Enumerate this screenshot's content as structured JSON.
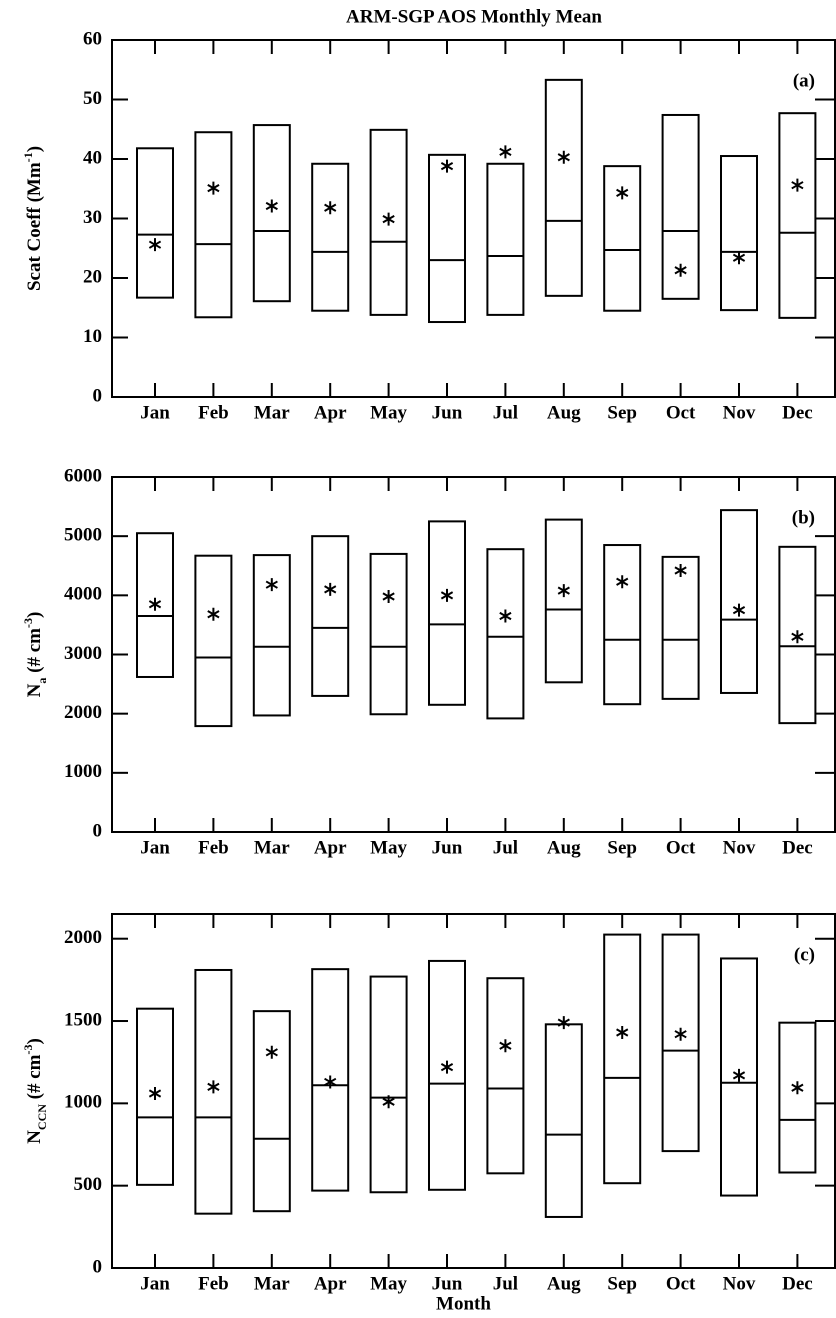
{
  "chart_data": [
    {
      "type": "range-box",
      "title": "ARM-SGP AOS Monthly Mean",
      "annotation": "(a)",
      "ylabel": [
        {
          "text": "Scat Coeff (Mm"
        },
        {
          "text": "-1",
          "shift": "super"
        },
        {
          "text": ")"
        }
      ],
      "categories": [
        "Jan",
        "Feb",
        "Mar",
        "Apr",
        "May",
        "Jun",
        "Jul",
        "Aug",
        "Sep",
        "Oct",
        "Nov",
        "Dec"
      ],
      "high": [
        41.8,
        44.5,
        45.7,
        39.2,
        44.9,
        40.7,
        39.2,
        53.3,
        38.8,
        47.4,
        40.5,
        47.7
      ],
      "median": [
        27.3,
        25.7,
        27.9,
        24.4,
        26.1,
        23.0,
        23.7,
        29.6,
        24.7,
        27.9,
        24.4,
        27.6
      ],
      "low": [
        16.7,
        13.4,
        16.1,
        14.5,
        13.8,
        12.6,
        13.8,
        17.0,
        14.5,
        16.5,
        14.6,
        13.3
      ],
      "mean": [
        25.6,
        35.1,
        32.1,
        31.8,
        29.9,
        38.8,
        41.2,
        40.3,
        34.3,
        21.3,
        23.4,
        35.6
      ],
      "color": "#000000",
      "ylim": [
        0,
        60
      ],
      "yticks": [
        0,
        10,
        20,
        30,
        40,
        50,
        60
      ]
    },
    {
      "type": "range-box",
      "annotation": "(b)",
      "ylabel": [
        {
          "text": "N"
        },
        {
          "text": "a",
          "shift": "sub"
        },
        {
          "text": " (# cm"
        },
        {
          "text": "-3",
          "shift": "super"
        },
        {
          "text": ")"
        }
      ],
      "categories": [
        "Jan",
        "Feb",
        "Mar",
        "Apr",
        "May",
        "Jun",
        "Jul",
        "Aug",
        "Sep",
        "Oct",
        "Nov",
        "Dec"
      ],
      "high": [
        5050,
        4670,
        4680,
        5000,
        4700,
        5250,
        4780,
        5280,
        4850,
        4650,
        5440,
        4820
      ],
      "median": [
        3650,
        2950,
        3130,
        3450,
        3130,
        3510,
        3300,
        3760,
        3250,
        3250,
        3590,
        3140
      ],
      "low": [
        2620,
        1790,
        1970,
        2300,
        1990,
        2150,
        1920,
        2530,
        2160,
        2250,
        2350,
        1840
      ],
      "mean": [
        3850,
        3680,
        4180,
        4100,
        3980,
        4000,
        3650,
        4080,
        4230,
        4420,
        3750,
        3300
      ],
      "color": "#000000",
      "ylim": [
        0,
        6000
      ],
      "yticks": [
        0,
        1000,
        2000,
        3000,
        4000,
        5000,
        6000
      ]
    },
    {
      "type": "range-box",
      "annotation": "(c)",
      "xlabel": "Month",
      "ylabel": [
        {
          "text": "N"
        },
        {
          "text": "CCN",
          "shift": "sub"
        },
        {
          "text": " (# cm"
        },
        {
          "text": "-3",
          "shift": "super"
        },
        {
          "text": ")"
        }
      ],
      "categories": [
        "Jan",
        "Feb",
        "Mar",
        "Apr",
        "May",
        "Jun",
        "Jul",
        "Aug",
        "Sep",
        "Oct",
        "Nov",
        "Dec"
      ],
      "high": [
        1575,
        1810,
        1560,
        1815,
        1770,
        1865,
        1760,
        1480,
        2025,
        2025,
        1880,
        1490
      ],
      "median": [
        915,
        915,
        785,
        1110,
        1035,
        1120,
        1090,
        810,
        1155,
        1320,
        1125,
        900
      ],
      "low": [
        505,
        330,
        345,
        470,
        460,
        475,
        575,
        310,
        515,
        710,
        440,
        580
      ],
      "mean": [
        1060,
        1100,
        1310,
        1130,
        1010,
        1220,
        1350,
        1490,
        1430,
        1420,
        1170,
        1095
      ],
      "color": "#000000",
      "ylim": [
        0,
        2150
      ],
      "yticks": [
        0,
        500,
        1000,
        1500,
        2000
      ]
    }
  ]
}
